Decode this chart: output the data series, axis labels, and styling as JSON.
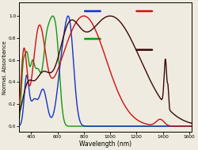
{
  "title": "",
  "xlabel": "Wavelength (nm)",
  "ylabel": "Normal. Absorbance",
  "xlim": [
    310,
    1620
  ],
  "ylim": [
    -0.05,
    1.12
  ],
  "xticks": [
    400,
    600,
    800,
    1000,
    1200,
    1400,
    1600
  ],
  "background_color": "#f0ebe0",
  "colors": {
    "blue": "#1133cc",
    "green": "#119911",
    "red": "#cc1111",
    "darkred": "#3a0808"
  },
  "legend_lines": {
    "blue": [
      0.38,
      0.47,
      0.935
    ],
    "green": [
      0.38,
      0.47,
      0.72
    ],
    "red": [
      0.68,
      0.77,
      0.935
    ],
    "darkred": [
      0.68,
      0.77,
      0.635
    ]
  }
}
